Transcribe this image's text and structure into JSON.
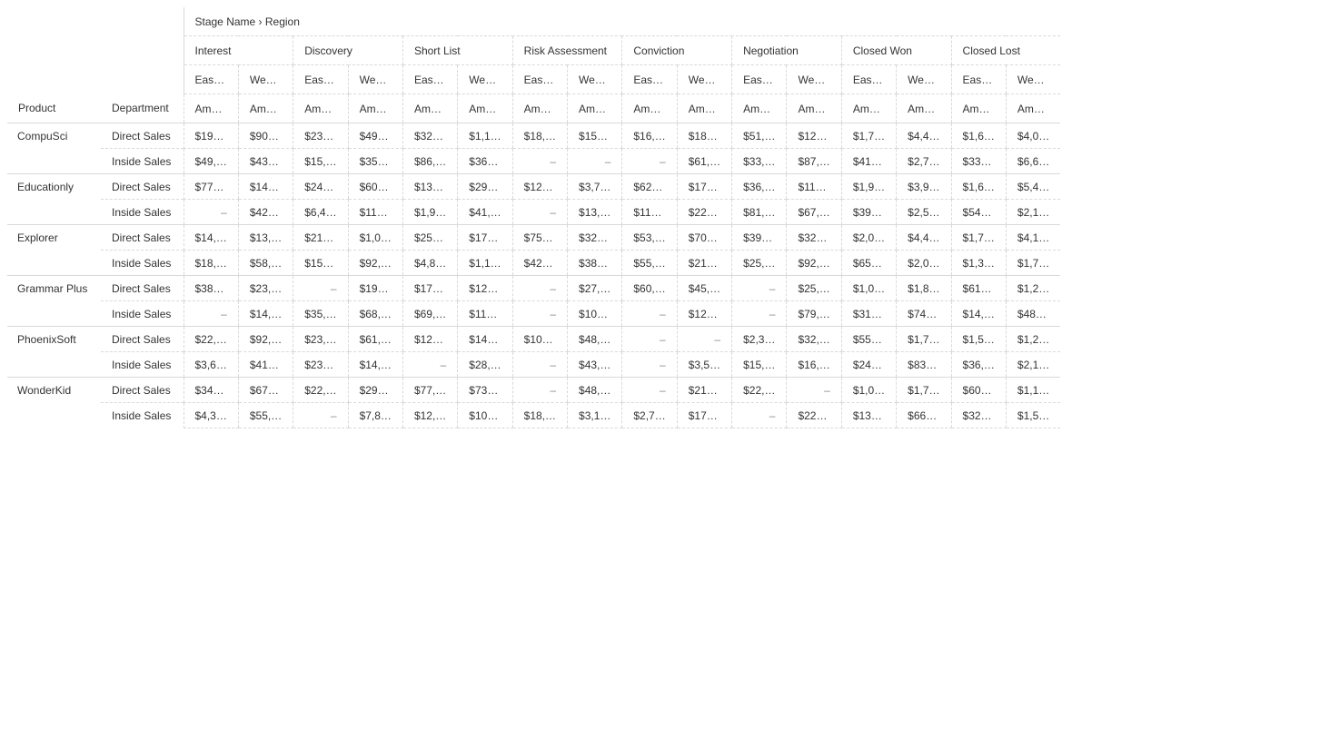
{
  "pivot": {
    "axis_label": "Stage Name › Region",
    "row_headers": {
      "product": "Product",
      "department": "Department"
    },
    "stages": [
      "Interest",
      "Discovery",
      "Short List",
      "Risk Assessment",
      "Conviction",
      "Negotiation",
      "Closed Won",
      "Closed Lost"
    ],
    "regions": [
      "Eas…",
      "We…"
    ],
    "metric_label": "Am…",
    "rows": [
      {
        "product": "CompuSci",
        "department": "Direct Sales",
        "cells": [
          "$19…",
          "$90…",
          "$23…",
          "$49…",
          "$32…",
          "$1,1…",
          "$18,…",
          "$15…",
          "$16,…",
          "$18…",
          "$51,…",
          "$12…",
          "$1,7…",
          "$4,4…",
          "$1,6…",
          "$4,0…"
        ]
      },
      {
        "product": "",
        "department": "Inside Sales",
        "cells": [
          "$49,…",
          "$43…",
          "$15,…",
          "$35…",
          "$86,…",
          "$36…",
          "–",
          "–",
          "–",
          "$61,…",
          "$33,…",
          "$87,…",
          "$41…",
          "$2,7…",
          "$33…",
          "$6,6…"
        ]
      },
      {
        "product": "Educationly",
        "department": "Direct Sales",
        "cells": [
          "$77…",
          "$14…",
          "$24…",
          "$60…",
          "$13…",
          "$29…",
          "$12…",
          "$3,7…",
          "$62…",
          "$17…",
          "$36,…",
          "$11…",
          "$1,9…",
          "$3,9…",
          "$1,6…",
          "$5,4…"
        ]
      },
      {
        "product": "",
        "department": "Inside Sales",
        "cells": [
          "–",
          "$42…",
          "$6,4…",
          "$11…",
          "$1,9…",
          "$41,…",
          "–",
          "$13,…",
          "$11…",
          "$22…",
          "$81,…",
          "$67,…",
          "$39…",
          "$2,5…",
          "$54…",
          "$2,1…"
        ]
      },
      {
        "product": "Explorer",
        "department": "Direct Sales",
        "cells": [
          "$14,…",
          "$13,…",
          "$21…",
          "$1,0…",
          "$25…",
          "$17…",
          "$75…",
          "$32…",
          "$53,…",
          "$70…",
          "$39…",
          "$32…",
          "$2,0…",
          "$4,4…",
          "$1,7…",
          "$4,1…"
        ]
      },
      {
        "product": "",
        "department": "Inside Sales",
        "cells": [
          "$18,…",
          "$58,…",
          "$15…",
          "$92,…",
          "$4,8…",
          "$1,1…",
          "$42…",
          "$38…",
          "$55,…",
          "$21…",
          "$25,…",
          "$92,…",
          "$65…",
          "$2,0…",
          "$1,3…",
          "$1,7…"
        ]
      },
      {
        "product": "Grammar Plus",
        "department": "Direct Sales",
        "cells": [
          "$38…",
          "$23,…",
          "–",
          "$19…",
          "$17…",
          "$12…",
          "–",
          "$27,…",
          "$60,…",
          "$45,…",
          "–",
          "$25,…",
          "$1,0…",
          "$1,8…",
          "$61…",
          "$1,2…"
        ]
      },
      {
        "product": "",
        "department": "Inside Sales",
        "cells": [
          "–",
          "$14,…",
          "$35,…",
          "$68,…",
          "$69,…",
          "$11…",
          "–",
          "$10…",
          "–",
          "$12…",
          "–",
          "$79,…",
          "$31…",
          "$74…",
          "$14,…",
          "$48…"
        ]
      },
      {
        "product": "PhoenixSoft",
        "department": "Direct Sales",
        "cells": [
          "$22,…",
          "$92,…",
          "$23,…",
          "$61,…",
          "$12…",
          "$14…",
          "$10…",
          "$48,…",
          "–",
          "–",
          "$2,3…",
          "$32,…",
          "$55…",
          "$1,7…",
          "$1,5…",
          "$1,2…"
        ]
      },
      {
        "product": "",
        "department": "Inside Sales",
        "cells": [
          "$3,6…",
          "$41…",
          "$23…",
          "$14,…",
          "–",
          "$28,…",
          "–",
          "$43,…",
          "–",
          "$3,5…",
          "$15,…",
          "$16,…",
          "$24…",
          "$83…",
          "$36,…",
          "$2,1…"
        ]
      },
      {
        "product": "WonderKid",
        "department": "Direct Sales",
        "cells": [
          "$34…",
          "$67…",
          "$22,…",
          "$29…",
          "$77,…",
          "$73…",
          "–",
          "$48,…",
          "–",
          "$21…",
          "$22,…",
          "–",
          "$1,0…",
          "$1,7…",
          "$60…",
          "$1,1…"
        ]
      },
      {
        "product": "",
        "department": "Inside Sales",
        "cells": [
          "$4,3…",
          "$55,…",
          "–",
          "$7,8…",
          "$12,…",
          "$10…",
          "$18,…",
          "$3,1…",
          "$2,7…",
          "$17…",
          "–",
          "$22…",
          "$13…",
          "$66…",
          "$32…",
          "$1,5…"
        ]
      }
    ]
  }
}
